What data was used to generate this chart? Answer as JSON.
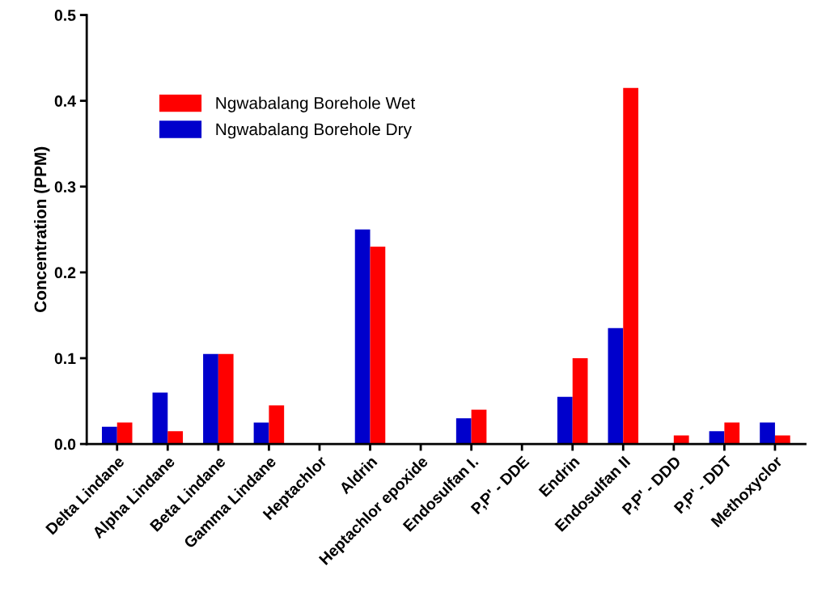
{
  "chart_data": {
    "type": "bar",
    "ylabel": "Concentration (PPM)",
    "categories": [
      "Delta Lindane",
      "Alpha Lindane",
      "Beta Lindane",
      "Gamma Lindane",
      "Heptachlor",
      "Aldrin",
      "Heptachlor epoxide",
      "Endosulfan I.",
      "P,P' - DDE",
      "Endrin",
      "Endosulfan II",
      "P,P' - DDD",
      "P,P' - DDT",
      "Methoxyclor"
    ],
    "series": [
      {
        "name": "Ngwabalang Borehole Dry",
        "color": "#0000cc",
        "values": [
          0.02,
          0.06,
          0.105,
          0.025,
          0,
          0.25,
          0,
          0.03,
          0,
          0.055,
          0.135,
          0,
          0.015,
          0.025
        ]
      },
      {
        "name": "Ngwabalang Borehole Wet",
        "color": "#ff0000",
        "values": [
          0.025,
          0.015,
          0.105,
          0.045,
          0,
          0.23,
          0,
          0.04,
          0,
          0.1,
          0.415,
          0.01,
          0.025,
          0.01
        ]
      }
    ],
    "ylim": [
      0,
      0.5
    ],
    "yticks": [
      {
        "value": 0,
        "label": "0.0"
      },
      0.1,
      0.2,
      0.3,
      0.4,
      0.5
    ],
    "grid": false,
    "legend": "top left"
  }
}
